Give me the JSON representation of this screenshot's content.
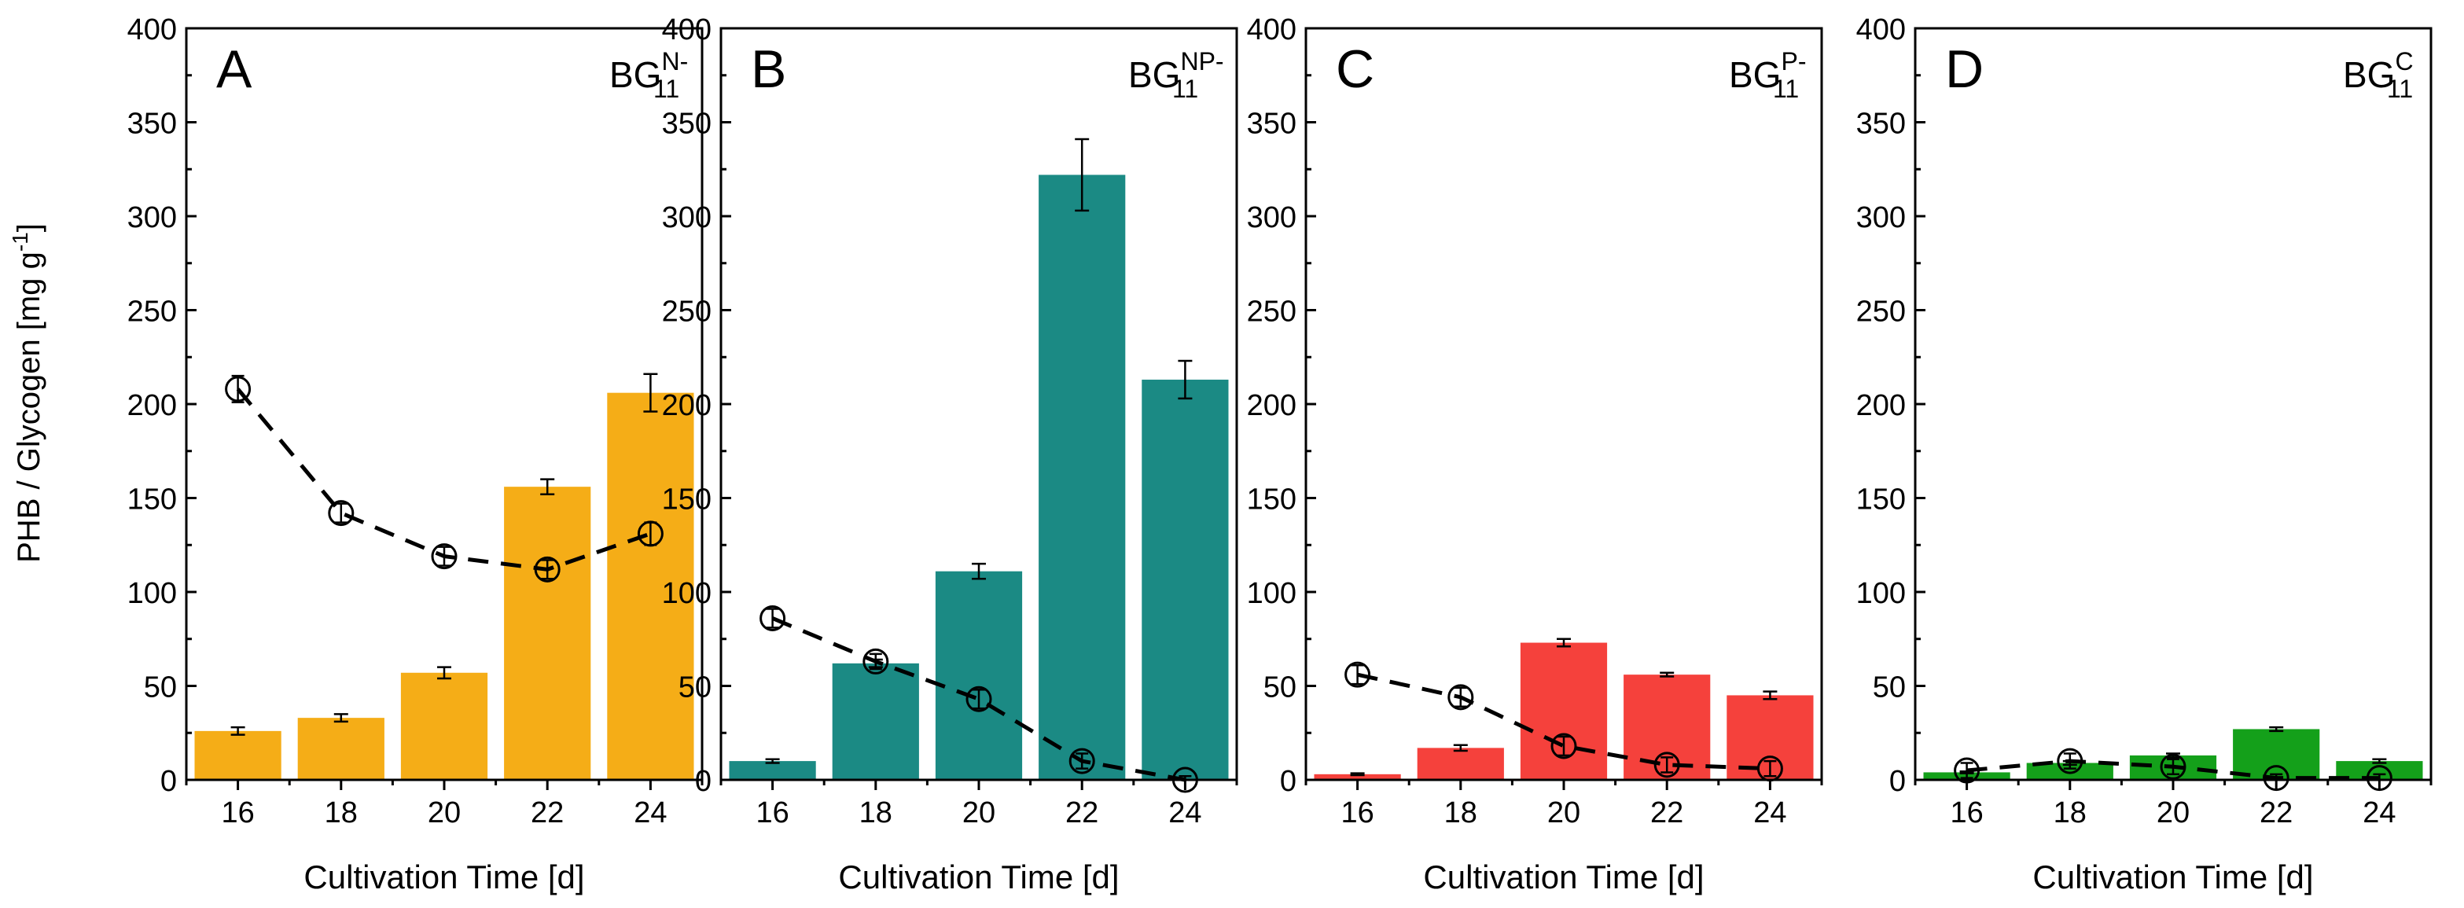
{
  "figure": {
    "ylabel_main": "PHB / Glycogen [mg g",
    "ylabel_sup": "-1",
    "ylabel_end": "]"
  },
  "chart_data": [
    {
      "type": "bar",
      "panel_letter": "A",
      "tag_base": "BG",
      "tag_sup": "N-",
      "tag_sub": "11",
      "xlabel": "Cultivation Time [d]",
      "ylabel": "PHB / Glycogen [mg g-1]",
      "ylim": [
        0,
        400
      ],
      "yticks": [
        0,
        50,
        100,
        150,
        200,
        250,
        300,
        350,
        400
      ],
      "categories": [
        "16",
        "18",
        "20",
        "22",
        "24"
      ],
      "bar_color": "#f5ad17",
      "series": [
        {
          "kind": "bar",
          "values": [
            26,
            33,
            57,
            156,
            206
          ],
          "errors": [
            2,
            2,
            3,
            4,
            10
          ]
        },
        {
          "kind": "line-markers",
          "values": [
            208,
            142,
            119,
            112,
            131
          ],
          "errors": [
            7,
            5,
            5,
            5,
            6
          ]
        }
      ]
    },
    {
      "type": "bar",
      "panel_letter": "B",
      "tag_base": "BG",
      "tag_sup": "NP-",
      "tag_sub": "11",
      "xlabel": "Cultivation Time [d]",
      "ylabel": "PHB / Glycogen [mg g-1]",
      "ylim": [
        0,
        400
      ],
      "yticks": [
        0,
        50,
        100,
        150,
        200,
        250,
        300,
        350,
        400
      ],
      "categories": [
        "16",
        "18",
        "20",
        "22",
        "24"
      ],
      "bar_color": "#1b8a84",
      "series": [
        {
          "kind": "bar",
          "values": [
            10,
            62,
            111,
            322,
            213
          ],
          "errors": [
            1,
            2,
            4,
            19,
            10
          ]
        },
        {
          "kind": "line-markers",
          "values": [
            86,
            63,
            43,
            10,
            0
          ],
          "errors": [
            5,
            4,
            5,
            4,
            2
          ]
        }
      ]
    },
    {
      "type": "bar",
      "panel_letter": "C",
      "tag_base": "BG",
      "tag_sup": "P-",
      "tag_sub": "11",
      "xlabel": "Cultivation Time [d]",
      "ylabel": "PHB / Glycogen [mg g-1]",
      "ylim": [
        0,
        400
      ],
      "yticks": [
        0,
        50,
        100,
        150,
        200,
        250,
        300,
        350,
        400
      ],
      "categories": [
        "16",
        "18",
        "20",
        "22",
        "24"
      ],
      "bar_color": "#f5413c",
      "series": [
        {
          "kind": "bar",
          "values": [
            3,
            17,
            73,
            56,
            45
          ],
          "errors": [
            0.5,
            1.5,
            2,
            1,
            2
          ]
        },
        {
          "kind": "line-markers",
          "values": [
            56,
            44,
            18,
            8,
            6
          ],
          "errors": [
            5,
            5,
            5,
            4,
            4
          ]
        }
      ]
    },
    {
      "type": "bar",
      "panel_letter": "D",
      "tag_base": "BG",
      "tag_sup": "C",
      "tag_sub": "11",
      "xlabel": "Cultivation Time [d]",
      "ylabel": "PHB / Glycogen [mg g-1]",
      "ylim": [
        0,
        400
      ],
      "yticks": [
        0,
        50,
        100,
        150,
        200,
        250,
        300,
        350,
        400
      ],
      "categories": [
        "16",
        "18",
        "20",
        "22",
        "24"
      ],
      "bar_color": "#14a01a",
      "series": [
        {
          "kind": "bar",
          "values": [
            4,
            9,
            13,
            27,
            10
          ],
          "errors": [
            0.5,
            1,
            1,
            1,
            1
          ]
        },
        {
          "kind": "line-markers",
          "values": [
            5,
            10,
            7,
            1,
            1
          ],
          "errors": [
            4,
            4,
            4,
            2,
            2
          ]
        }
      ]
    }
  ]
}
